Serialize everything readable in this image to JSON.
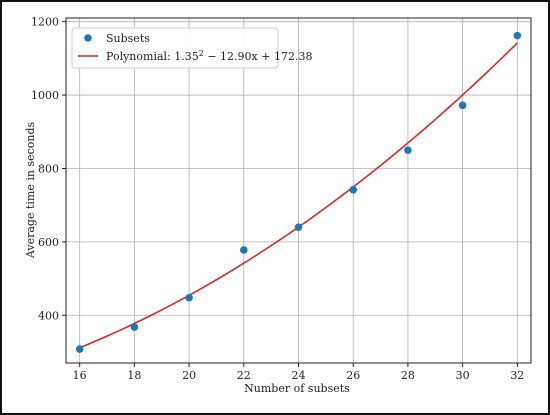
{
  "chart_data": {
    "type": "scatter",
    "title": "",
    "xlabel": "Number of subsets",
    "ylabel": "Average time in seconds",
    "xlim": [
      15.5,
      32.5
    ],
    "ylim": [
      270,
      1210
    ],
    "xticks": [
      16,
      18,
      20,
      22,
      24,
      26,
      28,
      30,
      32
    ],
    "yticks": [
      400,
      600,
      800,
      1000,
      1200
    ],
    "grid": true,
    "legend_position": "top-left",
    "series": [
      {
        "name": "Subsets",
        "kind": "scatter",
        "color": "#1f77b4",
        "x": [
          16,
          18,
          20,
          22,
          24,
          26,
          28,
          30,
          32
        ],
        "y": [
          308,
          368,
          448,
          578,
          640,
          742,
          850,
          972,
          1162
        ]
      },
      {
        "name_prefix": "Polynomial: 1.35",
        "name_exponent": "2",
        "name_suffix": " − 12.90x + 172.38",
        "kind": "line",
        "color": "#d62728",
        "coefficients": [
          1.35,
          -12.9,
          172.38
        ]
      }
    ]
  }
}
